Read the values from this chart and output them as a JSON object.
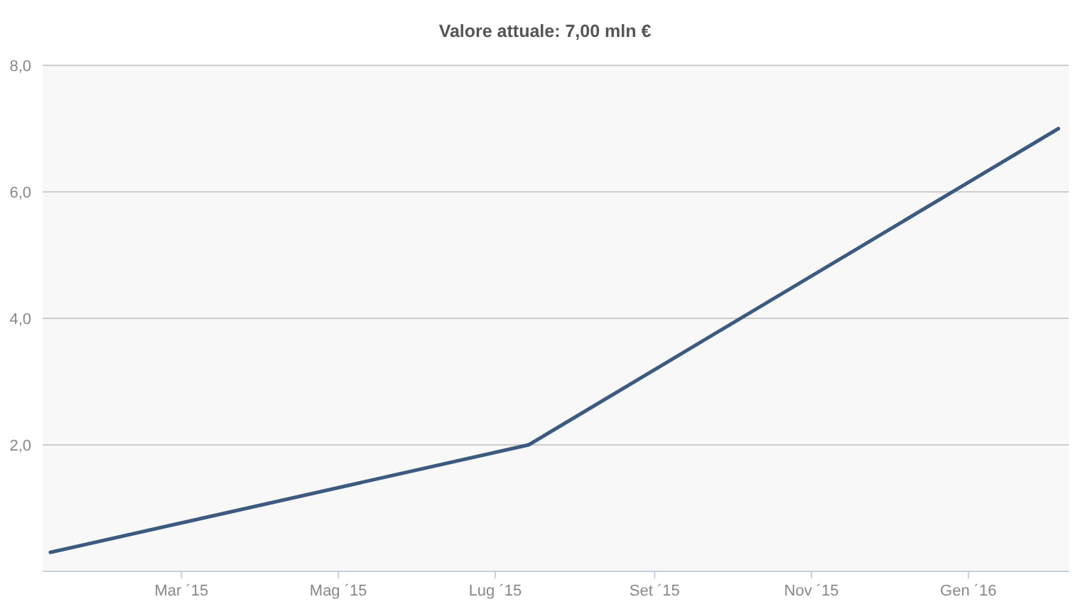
{
  "chart_data": {
    "type": "line",
    "title": "Valore attuale: 7,00 mln €",
    "x": [
      "2015-01-09",
      "2015-07-14",
      "2016-02-05"
    ],
    "series": [
      {
        "color": "#3d5a80",
        "values": [
          0.3,
          2.0,
          7.0
        ]
      }
    ],
    "xlim": [
      "2015-01-06",
      "2016-02-09"
    ],
    "xticks": [
      {
        "value": "2015-03-01",
        "label": "Mar ´15"
      },
      {
        "value": "2015-05-01",
        "label": "Mag ´15"
      },
      {
        "value": "2015-07-01",
        "label": "Lug ´15"
      },
      {
        "value": "2015-09-01",
        "label": "Set ´15"
      },
      {
        "value": "2015-11-01",
        "label": "Nov ´15"
      },
      {
        "value": "2016-01-01",
        "label": "Gen ´16"
      }
    ],
    "ylim": [
      0,
      8
    ],
    "yticks": [
      {
        "value": 2,
        "label": "2,0"
      },
      {
        "value": 4,
        "label": "4,0"
      },
      {
        "value": 6,
        "label": "6,0"
      },
      {
        "value": 8,
        "label": "8,0"
      }
    ],
    "grid": "y"
  }
}
